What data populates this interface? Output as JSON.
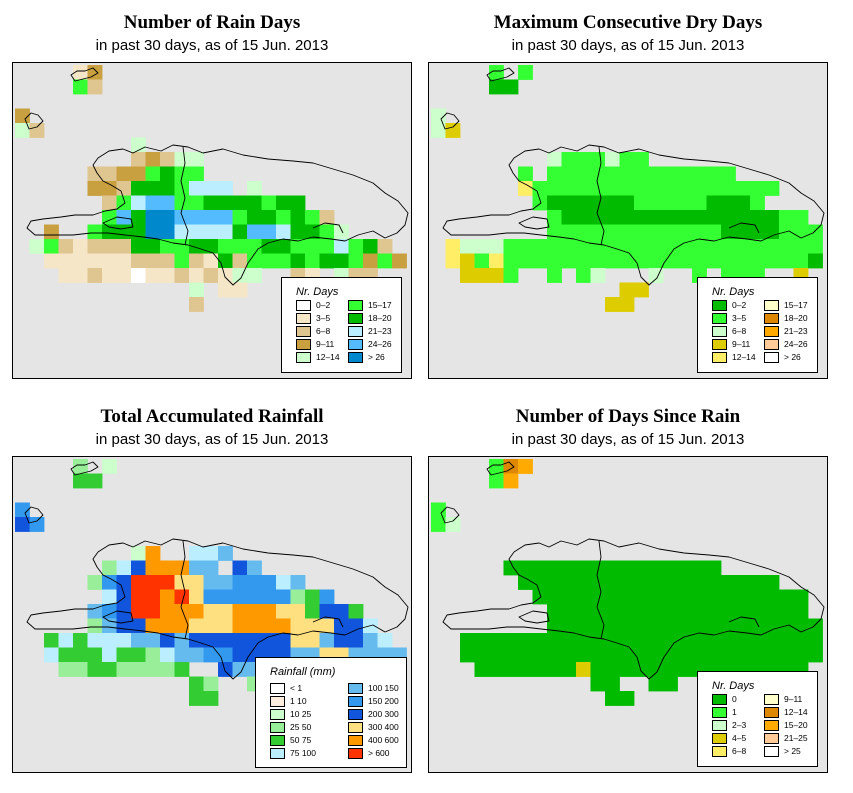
{
  "panels": [
    {
      "id": "rain-days",
      "title": "Number of Rain Days",
      "subtitle": "in past 30 days, as of  15 Jun. 2013",
      "legend": {
        "title": "Nr. Days",
        "items": [
          {
            "label": "0–2",
            "color": "#ffffff"
          },
          {
            "label": "3–5",
            "color": "#f5e6c8"
          },
          {
            "label": "6–8",
            "color": "#dfc590"
          },
          {
            "label": "9–11",
            "color": "#c8a040"
          },
          {
            "label": "12–14",
            "color": "#ccffcc"
          },
          {
            "label": "15–17",
            "color": "#33ff33"
          },
          {
            "label": "18–20",
            "color": "#00bb00"
          },
          {
            "label": "21–23",
            "color": "#bbeeff"
          },
          {
            "label": "24–26",
            "color": "#55bbff"
          },
          {
            "label": "> 26",
            "color": "#0088cc"
          }
        ]
      }
    },
    {
      "id": "dry-days",
      "title": "Maximum Consecutive Dry Days",
      "subtitle": "in past 30 days, as of  15 Jun. 2013",
      "legend": {
        "title": "Nr. Days",
        "items": [
          {
            "label": "0–2",
            "color": "#00bb00"
          },
          {
            "label": "3–5",
            "color": "#33ff33"
          },
          {
            "label": "6–8",
            "color": "#ccffcc"
          },
          {
            "label": "9–11",
            "color": "#ddcc00"
          },
          {
            "label": "12–14",
            "color": "#ffee66"
          },
          {
            "label": "15–17",
            "color": "#ffffcc"
          },
          {
            "label": "18–20",
            "color": "#dd8800"
          },
          {
            "label": "21–23",
            "color": "#ffaa00"
          },
          {
            "label": "24–26",
            "color": "#ffcc99"
          },
          {
            "label": "> 26",
            "color": "#ffffff"
          }
        ]
      }
    },
    {
      "id": "rainfall",
      "title": "Total Accumulated Rainfall",
      "subtitle": "in past 30 days, as of  15 Jun. 2013",
      "legend": {
        "title": "Rainfall (mm)",
        "items": [
          {
            "label": "< 1",
            "color": "#ffffff"
          },
          {
            "label": "1   10",
            "color": "#ffeedd"
          },
          {
            "label": "10   25",
            "color": "#ccffcc"
          },
          {
            "label": "25   50",
            "color": "#99ee99"
          },
          {
            "label": "50   75",
            "color": "#33cc33"
          },
          {
            "label": "75   100",
            "color": "#bbeeff"
          },
          {
            "label": "100   150",
            "color": "#66bbee"
          },
          {
            "label": "150   200",
            "color": "#3399ee"
          },
          {
            "label": "200   300",
            "color": "#1155dd"
          },
          {
            "label": "300   400",
            "color": "#ffe080"
          },
          {
            "label": "400   600",
            "color": "#ff9900"
          },
          {
            "label": "> 600",
            "color": "#ff3300"
          }
        ]
      }
    },
    {
      "id": "days-since-rain",
      "title": "Number of Days Since Rain",
      "subtitle": "in past 30 days, as of  15 Jun. 2013",
      "legend": {
        "title": "Nr. Days",
        "items": [
          {
            "label": "0",
            "color": "#00bb00"
          },
          {
            "label": "1",
            "color": "#33ff33"
          },
          {
            "label": "2–3",
            "color": "#ccffcc"
          },
          {
            "label": "4–5",
            "color": "#ddcc00"
          },
          {
            "label": "6–8",
            "color": "#ffee66"
          },
          {
            "label": "9–11",
            "color": "#ffffcc"
          },
          {
            "label": "12–14",
            "color": "#dd8800"
          },
          {
            "label": "15–20",
            "color": "#ffaa00"
          },
          {
            "label": "21–25",
            "color": "#ffcc99"
          },
          {
            "label": "> 25",
            "color": "#ffffff"
          }
        ]
      }
    }
  ]
}
